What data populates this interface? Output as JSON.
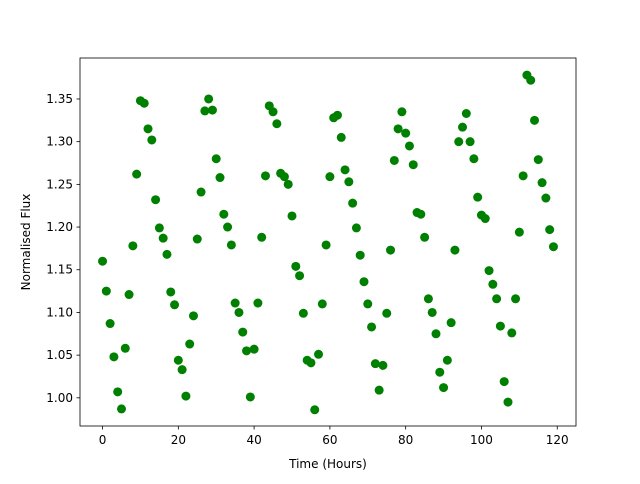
{
  "chart_data": {
    "type": "scatter",
    "xlabel": "Time (Hours)",
    "ylabel": "Normalised Flux",
    "color": "#008000",
    "x": [
      0,
      1,
      2,
      3,
      4,
      5,
      6,
      7,
      8,
      9,
      10,
      11,
      12,
      13,
      14,
      15,
      16,
      17,
      18,
      19,
      20,
      21,
      22,
      23,
      24,
      25,
      26,
      27,
      28,
      29,
      30,
      31,
      32,
      33,
      34,
      35,
      36,
      37,
      38,
      39,
      40,
      41,
      42,
      43,
      44,
      45,
      46,
      47,
      48,
      49,
      50,
      51,
      52,
      53,
      54,
      55,
      56,
      57,
      58,
      59,
      60,
      61,
      62,
      63,
      64,
      65,
      66,
      67,
      68,
      69,
      70,
      71,
      72,
      73,
      74,
      75,
      76,
      77,
      78,
      79,
      80,
      81,
      82,
      83,
      84,
      85,
      86,
      87,
      88,
      89,
      90,
      91,
      92,
      93,
      94,
      95,
      96,
      97,
      98,
      99,
      100,
      101,
      102,
      103,
      104,
      105,
      106,
      107,
      108,
      109,
      110,
      111,
      112,
      113,
      114,
      115,
      116,
      117,
      118,
      119
    ],
    "values": [
      1.16,
      1.125,
      1.087,
      1.048,
      1.007,
      0.987,
      1.058,
      1.121,
      1.178,
      1.262,
      1.348,
      1.345,
      1.315,
      1.302,
      1.232,
      1.199,
      1.187,
      1.168,
      1.124,
      1.109,
      1.044,
      1.033,
      1.002,
      1.063,
      1.096,
      1.186,
      1.241,
      1.336,
      1.35,
      1.337,
      1.28,
      1.258,
      1.215,
      1.2,
      1.179,
      1.111,
      1.1,
      1.077,
      1.055,
      1.001,
      1.057,
      1.111,
      1.188,
      1.26,
      1.342,
      1.335,
      1.321,
      1.263,
      1.259,
      1.25,
      1.213,
      1.154,
      1.143,
      1.099,
      1.044,
      1.041,
      0.986,
      1.051,
      1.11,
      1.179,
      1.259,
      1.328,
      1.331,
      1.305,
      1.267,
      1.253,
      1.228,
      1.199,
      1.167,
      1.136,
      1.11,
      1.083,
      1.04,
      1.009,
      1.038,
      1.099,
      1.173,
      1.278,
      1.315,
      1.335,
      1.31,
      1.295,
      1.273,
      1.217,
      1.215,
      1.188,
      1.116,
      1.1,
      1.075,
      1.03,
      1.012,
      1.044,
      1.088,
      1.173,
      1.3,
      1.317,
      1.333,
      1.3,
      1.28,
      1.235,
      1.214,
      1.21,
      1.149,
      1.133,
      1.116,
      1.084,
      1.019,
      0.995,
      1.076,
      1.116,
      1.194,
      1.26,
      1.378,
      1.372,
      1.325,
      1.279,
      1.252,
      1.234,
      1.197,
      1.177
    ],
    "xlim": [
      -5.95,
      124.95
    ],
    "ylim": [
      0.967,
      1.398
    ],
    "xticks": [
      0,
      20,
      40,
      60,
      80,
      100,
      120
    ],
    "yticks": [
      {
        "value": 1.0,
        "label": "1.00"
      },
      {
        "value": 1.05,
        "label": "1.05"
      },
      {
        "value": 1.1,
        "label": "1.10"
      },
      {
        "value": 1.15,
        "label": "1.15"
      },
      {
        "value": 1.2,
        "label": "1.20"
      },
      {
        "value": 1.25,
        "label": "1.25"
      },
      {
        "value": 1.3,
        "label": "1.30"
      },
      {
        "value": 1.35,
        "label": "1.35"
      }
    ]
  }
}
